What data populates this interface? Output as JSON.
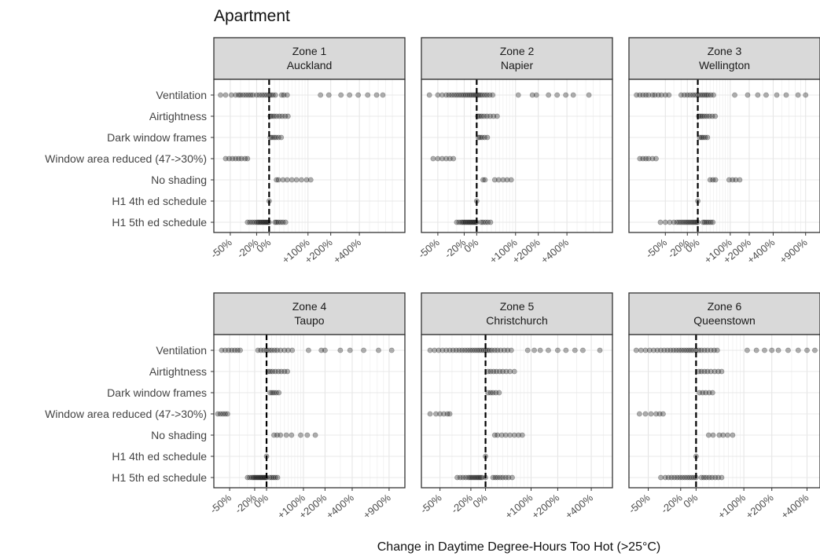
{
  "chart_data": {
    "type": "scatter",
    "title": "Apartment",
    "xlabel": "Change in Daytime Degree-Hours Too Hot (>25°C)",
    "ylabel": "",
    "x_scale": "log(1 + change)",
    "reference_line": {
      "x": 0,
      "style": "dashed"
    },
    "grid": true,
    "categories": [
      "Ventilation",
      "Airtightness",
      "Dark window frames",
      "Window area reduced (47->30%)",
      "No shading",
      "H1 4th ed schedule",
      "H1 5th ed schedule"
    ],
    "panels": [
      {
        "zone": "Zone 1",
        "location": "Auckland",
        "xlim": [
          -60,
          950
        ],
        "x_ticks": [
          {
            "value": -50,
            "label": "-50%"
          },
          {
            "value": -20,
            "label": "-20%"
          },
          {
            "value": 0,
            "label": "0%"
          },
          {
            "value": 100,
            "label": "+100%"
          },
          {
            "value": 200,
            "label": "+200%"
          },
          {
            "value": 400,
            "label": "+400%"
          }
        ],
        "points": {
          "Ventilation": [
            -58,
            -54,
            -49,
            -45,
            -42,
            -40,
            -37,
            -34,
            -31,
            -28,
            -25,
            -20,
            -16,
            -12,
            -8,
            -4,
            0,
            3,
            7,
            12,
            25,
            30,
            38,
            150,
            190,
            260,
            320,
            390,
            480,
            580,
            660
          ],
          "Airtightness": [
            2,
            5,
            9,
            14,
            20,
            26,
            33,
            40
          ],
          "Dark window frames": [
            2,
            5,
            9,
            13,
            18,
            24
          ],
          "Window area reduced (47->30%)": [
            -54,
            -51,
            -48,
            -45,
            -42,
            -39,
            -35,
            -32
          ],
          "No shading": [
            14,
            18,
            28,
            38,
            50,
            63,
            78,
            95,
            110
          ],
          "H1 4th ed schedule": [
            0
          ],
          "H1 5th ed schedule": [
            -32,
            -29,
            -26,
            -23,
            -20,
            -18,
            -16,
            -14,
            -12,
            -10,
            -8,
            -6,
            -4,
            -2,
            0,
            11,
            14,
            18,
            23,
            28,
            34
          ]
        }
      },
      {
        "zone": "Zone 2",
        "location": "Napier",
        "xlim": [
          -60,
          950
        ],
        "x_ticks": [
          {
            "value": -50,
            "label": "-50%"
          },
          {
            "value": -20,
            "label": "-20%"
          },
          {
            "value": 0,
            "label": "0%"
          },
          {
            "value": 100,
            "label": "+100%"
          },
          {
            "value": 200,
            "label": "+200%"
          },
          {
            "value": 400,
            "label": "+400%"
          }
        ],
        "points": {
          "Ventilation": [
            -57,
            -50,
            -46,
            -42,
            -39,
            -36,
            -33,
            -30,
            -27,
            -24,
            -21,
            -18,
            -15,
            -12,
            -9,
            -6,
            -3,
            0,
            3,
            6,
            10,
            15,
            20,
            26,
            33,
            110,
            170,
            190,
            260,
            320,
            390,
            460,
            640
          ],
          "Airtightness": [
            2,
            5,
            9,
            14,
            20,
            27,
            35,
            44
          ],
          "Dark window frames": [
            3,
            6,
            10,
            15,
            21
          ],
          "Window area reduced (47->30%)": [
            -54,
            -50,
            -46,
            -42,
            -38,
            -34
          ],
          "No shading": [
            12,
            16,
            38,
            48,
            60,
            72,
            85
          ],
          "H1 4th ed schedule": [
            0
          ],
          "H1 5th ed schedule": [
            -30,
            -27,
            -24,
            -22,
            -20,
            -18,
            -16,
            -14,
            -12,
            -10,
            -8,
            -6,
            -4,
            -2,
            0,
            8,
            12,
            17,
            22,
            28
          ]
        }
      },
      {
        "zone": "Zone 3",
        "location": "Wellington",
        "xlim": [
          -75,
          1150
        ],
        "x_ticks": [
          {
            "value": -50,
            "label": "-50%"
          },
          {
            "value": -20,
            "label": "-20%"
          },
          {
            "value": 0,
            "label": "0%"
          },
          {
            "value": 100,
            "label": "+100%"
          },
          {
            "value": 200,
            "label": "+200%"
          },
          {
            "value": 400,
            "label": "+400%"
          },
          {
            "value": 900,
            "label": "+900%"
          }
        ],
        "points": {
          "Ventilation": [
            -73,
            -71,
            -69,
            -67,
            -65,
            -62,
            -60,
            -57,
            -54,
            -50,
            -46,
            -30,
            -25,
            -20,
            -15,
            -10,
            -5,
            0,
            5,
            10,
            15,
            20,
            25,
            32,
            40,
            120,
            190,
            260,
            330,
            440,
            560,
            750,
            900
          ],
          "Airtightness": [
            2,
            6,
            10,
            15,
            21,
            28,
            36,
            45
          ],
          "Dark window frames": [
            4,
            8,
            12,
            17,
            23
          ],
          "Window area reduced (47->30%)": [
            -71,
            -69,
            -67,
            -65,
            -62,
            -59
          ],
          "No shading": [
            30,
            38,
            46,
            95,
            110,
            125,
            145
          ],
          "H1 4th ed schedule": [
            0
          ],
          "H1 5th ed schedule": [
            -55,
            -50,
            -45,
            -40,
            -36,
            -33,
            -30,
            -27,
            -24,
            -21,
            -18,
            -15,
            -12,
            -9,
            -6,
            -3,
            0,
            12,
            16,
            21,
            26,
            32,
            38
          ]
        }
      },
      {
        "zone": "Zone 4",
        "location": "Taupo",
        "xlim": [
          -60,
          1150
        ],
        "x_ticks": [
          {
            "value": -50,
            "label": "-50%"
          },
          {
            "value": -20,
            "label": "-20%"
          },
          {
            "value": 0,
            "label": "0%"
          },
          {
            "value": 100,
            "label": "+100%"
          },
          {
            "value": 200,
            "label": "+200%"
          },
          {
            "value": 400,
            "label": "+400%"
          },
          {
            "value": 900,
            "label": "+900%"
          }
        ],
        "points": {
          "Ventilation": [
            -57,
            -54,
            -51,
            -48,
            -45,
            -42,
            -39,
            -15,
            -10,
            -5,
            0,
            5,
            10,
            16,
            22,
            30,
            40,
            50,
            62,
            120,
            180,
            200,
            300,
            380,
            520,
            720,
            950
          ],
          "Airtightness": [
            3,
            7,
            12,
            18,
            25,
            32,
            40,
            48
          ],
          "Dark window frames": [
            7,
            11,
            15,
            20,
            26
          ],
          "Window area reduced (47->30%)": [
            -60,
            -58,
            -56,
            -54,
            -52
          ],
          "No shading": [
            15,
            22,
            30,
            45,
            60,
            90,
            115,
            150
          ],
          "H1 4th ed schedule": [
            0
          ],
          "H1 5th ed schedule": [
            -30,
            -27,
            -24,
            -22,
            -20,
            -18,
            -16,
            -14,
            -12,
            -10,
            -8,
            -6,
            -4,
            -2,
            0,
            6,
            10,
            14,
            18,
            23
          ]
        }
      },
      {
        "zone": "Zone 5",
        "location": "Christchurch",
        "xlim": [
          -60,
          550
        ],
        "x_ticks": [
          {
            "value": -50,
            "label": "-50%"
          },
          {
            "value": -20,
            "label": "-20%"
          },
          {
            "value": 0,
            "label": "0%"
          },
          {
            "value": 100,
            "label": "+100%"
          },
          {
            "value": 200,
            "label": "+200%"
          },
          {
            "value": 400,
            "label": "+400%"
          }
        ],
        "points": {
          "Ventilation": [
            -57,
            -54,
            -51,
            -48,
            -45,
            -42,
            -39,
            -36,
            -33,
            -30,
            -27,
            -24,
            -21,
            -18,
            -15,
            -12,
            -9,
            -6,
            -3,
            0,
            3,
            6,
            10,
            15,
            20,
            26,
            33,
            40,
            48,
            90,
            110,
            130,
            160,
            200,
            240,
            290,
            340,
            470
          ],
          "Airtightness": [
            4,
            8,
            13,
            18,
            24,
            30,
            37,
            45,
            55
          ],
          "Dark window frames": [
            4,
            8,
            12,
            17,
            23
          ],
          "Window area reduced (47->30%)": [
            -57,
            -53,
            -50,
            -47,
            -44,
            -42
          ],
          "No shading": [
            15,
            20,
            28,
            36,
            45,
            55,
            65,
            75
          ],
          "H1 4th ed schedule": [
            0
          ],
          "H1 5th ed schedule": [
            -35,
            -32,
            -29,
            -26,
            -23,
            -21,
            -19,
            -17,
            -15,
            -13,
            -11,
            -9,
            -7,
            -5,
            0,
            12,
            16,
            20,
            25,
            30,
            36,
            42,
            50
          ]
        }
      },
      {
        "zone": "Zone 6",
        "location": "Queenstown",
        "xlim": [
          -60,
          470
        ],
        "x_ticks": [
          {
            "value": -50,
            "label": "-50%"
          },
          {
            "value": -20,
            "label": "-20%"
          },
          {
            "value": 0,
            "label": "0%"
          },
          {
            "value": 100,
            "label": "+100%"
          },
          {
            "value": 200,
            "label": "+200%"
          },
          {
            "value": 400,
            "label": "+400%"
          }
        ],
        "points": {
          "Ventilation": [
            -58,
            -55,
            -52,
            -49,
            -46,
            -43,
            -40,
            -37,
            -34,
            -31,
            -28,
            -25,
            -22,
            -19,
            -16,
            -13,
            -10,
            -7,
            -4,
            0,
            4,
            8,
            13,
            18,
            24,
            30,
            36,
            110,
            140,
            170,
            200,
            230,
            280,
            340,
            400,
            460
          ],
          "Airtightness": [
            4,
            8,
            13,
            18,
            24,
            31,
            38,
            45
          ],
          "Dark window frames": [
            5,
            10,
            15,
            21,
            27
          ],
          "Window area reduced (47->30%)": [
            -56,
            -52,
            -48,
            -44,
            -41,
            -38
          ],
          "No shading": [
            20,
            28,
            40,
            48,
            58,
            70
          ],
          "H1 4th ed schedule": [
            0
          ],
          "H1 5th ed schedule": [
            -40,
            -36,
            -33,
            -30,
            -27,
            -24,
            -21,
            -18,
            -15,
            -12,
            -9,
            -6,
            -3,
            0,
            8,
            12,
            16,
            21,
            26,
            32,
            38,
            45
          ]
        }
      }
    ]
  }
}
